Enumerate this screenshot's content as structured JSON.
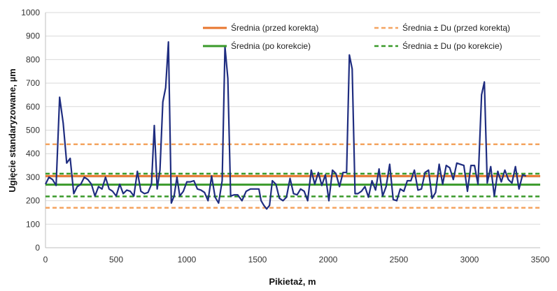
{
  "chart_data": {
    "type": "line",
    "xlabel": "Pikietaż, m",
    "ylabel": "Ugięcie standaryzowane, µm",
    "xlim": [
      0,
      3500
    ],
    "ylim": [
      0,
      1000
    ],
    "xticks": [
      0,
      500,
      1000,
      1500,
      2000,
      2500,
      3000,
      3500
    ],
    "yticks": [
      0,
      100,
      200,
      300,
      400,
      500,
      600,
      700,
      800,
      900,
      1000
    ],
    "grid": "horizontal",
    "legend_position": "top-right",
    "series": [
      {
        "type": "line",
        "color": "#1f2d80",
        "points": [
          [
            0,
            270
          ],
          [
            25,
            300
          ],
          [
            50,
            290
          ],
          [
            75,
            265
          ],
          [
            100,
            640
          ],
          [
            125,
            530
          ],
          [
            150,
            360
          ],
          [
            175,
            380
          ],
          [
            200,
            230
          ],
          [
            225,
            260
          ],
          [
            250,
            270
          ],
          [
            275,
            300
          ],
          [
            300,
            290
          ],
          [
            325,
            270
          ],
          [
            350,
            220
          ],
          [
            375,
            260
          ],
          [
            400,
            250
          ],
          [
            425,
            300
          ],
          [
            450,
            250
          ],
          [
            475,
            240
          ],
          [
            500,
            220
          ],
          [
            525,
            270
          ],
          [
            550,
            230
          ],
          [
            575,
            245
          ],
          [
            600,
            240
          ],
          [
            625,
            220
          ],
          [
            650,
            325
          ],
          [
            675,
            240
          ],
          [
            700,
            230
          ],
          [
            725,
            235
          ],
          [
            750,
            270
          ],
          [
            770,
            520
          ],
          [
            790,
            250
          ],
          [
            810,
            330
          ],
          [
            830,
            620
          ],
          [
            850,
            680
          ],
          [
            870,
            875
          ],
          [
            890,
            190
          ],
          [
            910,
            220
          ],
          [
            930,
            300
          ],
          [
            950,
            220
          ],
          [
            975,
            240
          ],
          [
            1000,
            280
          ],
          [
            1025,
            280
          ],
          [
            1050,
            285
          ],
          [
            1075,
            250
          ],
          [
            1100,
            245
          ],
          [
            1125,
            235
          ],
          [
            1150,
            200
          ],
          [
            1175,
            305
          ],
          [
            1200,
            215
          ],
          [
            1225,
            190
          ],
          [
            1250,
            285
          ],
          [
            1270,
            855
          ],
          [
            1290,
            720
          ],
          [
            1310,
            220
          ],
          [
            1335,
            225
          ],
          [
            1360,
            225
          ],
          [
            1390,
            200
          ],
          [
            1420,
            240
          ],
          [
            1450,
            250
          ],
          [
            1480,
            250
          ],
          [
            1510,
            250
          ],
          [
            1525,
            200
          ],
          [
            1545,
            180
          ],
          [
            1565,
            165
          ],
          [
            1585,
            180
          ],
          [
            1605,
            285
          ],
          [
            1630,
            270
          ],
          [
            1655,
            210
          ],
          [
            1680,
            200
          ],
          [
            1705,
            215
          ],
          [
            1730,
            295
          ],
          [
            1755,
            230
          ],
          [
            1780,
            225
          ],
          [
            1805,
            250
          ],
          [
            1830,
            240
          ],
          [
            1855,
            200
          ],
          [
            1880,
            330
          ],
          [
            1905,
            270
          ],
          [
            1930,
            320
          ],
          [
            1955,
            265
          ],
          [
            1980,
            310
          ],
          [
            2005,
            200
          ],
          [
            2030,
            330
          ],
          [
            2055,
            315
          ],
          [
            2080,
            260
          ],
          [
            2105,
            320
          ],
          [
            2130,
            320
          ],
          [
            2150,
            820
          ],
          [
            2170,
            760
          ],
          [
            2190,
            230
          ],
          [
            2210,
            230
          ],
          [
            2235,
            240
          ],
          [
            2260,
            260
          ],
          [
            2285,
            215
          ],
          [
            2310,
            285
          ],
          [
            2335,
            245
          ],
          [
            2360,
            335
          ],
          [
            2385,
            220
          ],
          [
            2410,
            260
          ],
          [
            2435,
            355
          ],
          [
            2460,
            205
          ],
          [
            2485,
            200
          ],
          [
            2510,
            250
          ],
          [
            2535,
            240
          ],
          [
            2560,
            285
          ],
          [
            2585,
            285
          ],
          [
            2610,
            330
          ],
          [
            2635,
            245
          ],
          [
            2660,
            250
          ],
          [
            2685,
            320
          ],
          [
            2710,
            330
          ],
          [
            2735,
            210
          ],
          [
            2760,
            235
          ],
          [
            2785,
            355
          ],
          [
            2810,
            270
          ],
          [
            2835,
            350
          ],
          [
            2860,
            340
          ],
          [
            2885,
            290
          ],
          [
            2910,
            360
          ],
          [
            2935,
            355
          ],
          [
            2960,
            350
          ],
          [
            2985,
            240
          ],
          [
            3010,
            350
          ],
          [
            3035,
            350
          ],
          [
            3060,
            270
          ],
          [
            3085,
            650
          ],
          [
            3105,
            705
          ],
          [
            3125,
            275
          ],
          [
            3150,
            345
          ],
          [
            3175,
            220
          ],
          [
            3200,
            325
          ],
          [
            3225,
            280
          ],
          [
            3250,
            330
          ],
          [
            3275,
            290
          ],
          [
            3300,
            275
          ],
          [
            3325,
            345
          ],
          [
            3350,
            250
          ],
          [
            3375,
            310
          ],
          [
            3400,
            305
          ]
        ]
      }
    ],
    "reference_lines": [
      {
        "label": "Średnia (przed korektą)",
        "value": 305,
        "color": "#e8762d",
        "style": "solid"
      },
      {
        "label": "Średnia ± Du (przed korektą)",
        "value": [
          170,
          440
        ],
        "color": "#f4a460",
        "style": "dashed"
      },
      {
        "label": "Średnia (po korekcie)",
        "value": 268,
        "color": "#3a9a2a",
        "style": "solid"
      },
      {
        "label": "Średnia ± Du (po korekcie)",
        "value": [
          218,
          315
        ],
        "color": "#3a9a2a",
        "style": "dashed"
      }
    ]
  }
}
